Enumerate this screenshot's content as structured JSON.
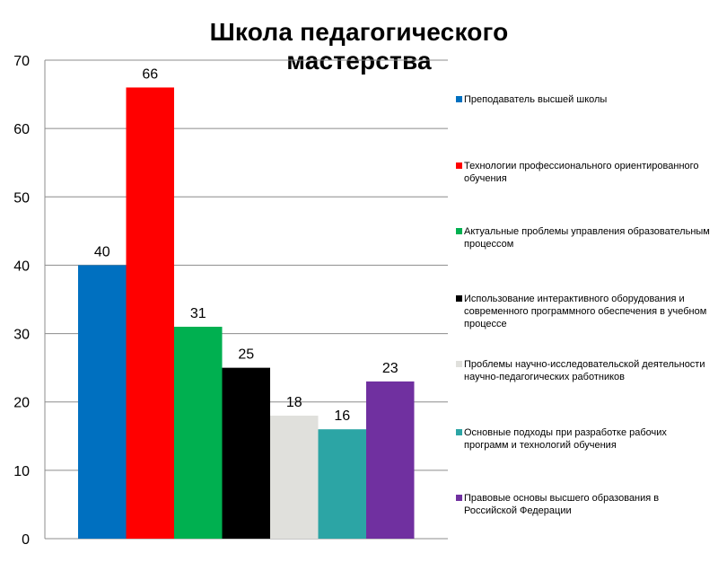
{
  "chart_data": {
    "type": "bar",
    "title": "Школа педагогического мастерства",
    "xlabel": "",
    "ylabel": "",
    "ylim": [
      0,
      70
    ],
    "y_ticks": [
      0,
      10,
      20,
      30,
      40,
      50,
      60,
      70
    ],
    "grid": true,
    "legend_position": "right",
    "series": [
      {
        "name": "Преподаватель высшей школы",
        "value": 40,
        "color": "#0070C0"
      },
      {
        "name": "Технологии профессионального ориентированного обучения",
        "value": 66,
        "color": "#FF0000"
      },
      {
        "name": "Актуальные проблемы управления образовательным процессом",
        "value": 31,
        "color": "#00B050"
      },
      {
        "name": "Использование интерактивного оборудования и современного программного обеспечения в учебном процессе",
        "value": 25,
        "color": "#000000"
      },
      {
        "name": "Проблемы научно-исследовательской деятельности научно-педагогических работников",
        "value": 18,
        "color": "#E0E0DC"
      },
      {
        "name": "Основные подходы при разработке рабочих программ и технологий обучения",
        "value": 16,
        "color": "#2CA5A5"
      },
      {
        "name": "Правовые основы высшего образования в Российской Федерации",
        "value": 23,
        "color": "#7030A0"
      }
    ]
  }
}
